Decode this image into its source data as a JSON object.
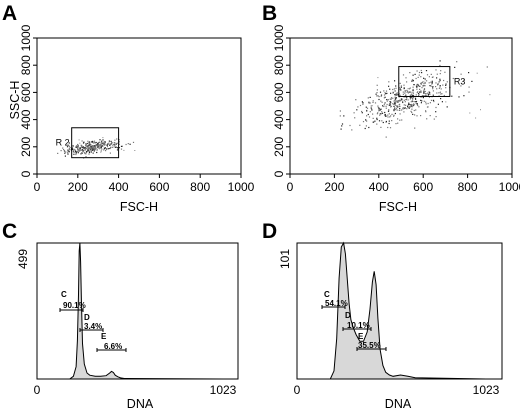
{
  "figure": {
    "panels": [
      "A",
      "B",
      "C",
      "D"
    ]
  },
  "chart_data": [
    {
      "panel": "A",
      "type": "scatter",
      "xlabel": "FSC-H",
      "ylabel": "SSC-H",
      "xlim": [
        0,
        1000
      ],
      "ylim": [
        0,
        1000
      ],
      "xticks": [
        0,
        200,
        400,
        600,
        800,
        1000
      ],
      "yticks": [
        0,
        200,
        400,
        600,
        800,
        1000
      ],
      "gate": {
        "label": "R 2",
        "x": [
          170,
          400
        ],
        "y": [
          120,
          340
        ]
      },
      "cloud": {
        "center": [
          270,
          200
        ],
        "spread": [
          65,
          40
        ],
        "count": 320
      }
    },
    {
      "panel": "B",
      "type": "scatter",
      "xlabel": "FSC-H",
      "ylabel": "",
      "xlim": [
        0,
        1000
      ],
      "ylim": [
        0,
        1000
      ],
      "xticks": [
        0,
        200,
        400,
        600,
        800,
        1000
      ],
      "yticks": [
        0,
        200,
        400,
        600,
        800,
        1000
      ],
      "gate": {
        "label": "R3",
        "x": [
          490,
          720
        ],
        "y": [
          570,
          790
        ]
      },
      "cloud": {
        "center": [
          520,
          560
        ],
        "spread": [
          110,
          130
        ],
        "count": 520
      }
    },
    {
      "panel": "C",
      "type": "area",
      "xlabel": "DNA",
      "xlim": [
        0,
        1023
      ],
      "ymax_label": "499",
      "xtick_labels": [
        "0",
        "1023"
      ],
      "peaks": [
        {
          "letter": "C",
          "percent": "90.1%"
        },
        {
          "letter": "D",
          "percent": "3.4%"
        },
        {
          "letter": "E",
          "percent": "6.6%"
        }
      ],
      "curve": {
        "x": [
          0,
          180,
          200,
          215,
          222,
          228,
          232,
          236,
          240,
          244,
          250,
          260,
          275,
          290,
          320,
          350,
          380,
          400,
          410,
          420,
          430,
          445,
          460,
          480,
          1023
        ],
        "y": [
          0,
          0,
          10,
          45,
          140,
          310,
          470,
          499,
          430,
          290,
          130,
          55,
          22,
          14,
          10,
          10,
          12,
          22,
          28,
          24,
          14,
          8,
          4,
          2,
          0
        ]
      }
    },
    {
      "panel": "D",
      "type": "area",
      "xlabel": "DNA",
      "xlim": [
        0,
        1023
      ],
      "ymax_label": "101",
      "xtick_labels": [
        "0",
        "1023"
      ],
      "peaks": [
        {
          "letter": "C",
          "percent": "54.1%"
        },
        {
          "letter": "D",
          "percent": "10.1%"
        },
        {
          "letter": "E",
          "percent": "35.5%"
        }
      ],
      "curve": {
        "x": [
          0,
          180,
          200,
          215,
          228,
          240,
          252,
          262,
          272,
          282,
          292,
          305,
          320,
          340,
          360,
          380,
          395,
          408,
          418,
          428,
          438,
          450,
          465,
          480,
          500,
          520,
          560,
          600,
          640,
          1023
        ],
        "y": [
          0,
          0,
          6,
          30,
          75,
          98,
          101,
          93,
          74,
          56,
          44,
          38,
          33,
          28,
          28,
          35,
          52,
          72,
          80,
          70,
          45,
          22,
          10,
          5,
          3,
          2,
          3,
          2,
          1,
          0
        ]
      }
    }
  ]
}
